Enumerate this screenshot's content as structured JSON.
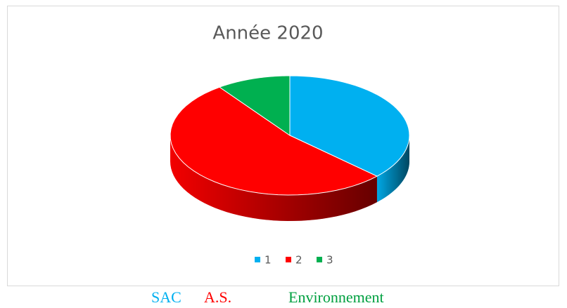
{
  "chart_data": {
    "type": "pie3d",
    "title": "Année 2020",
    "categories": [
      "1",
      "2",
      "3"
    ],
    "values": [
      37,
      53,
      10
    ],
    "colors": [
      "#00b0f0",
      "#ff0000",
      "#00b050"
    ],
    "legend": "bottom"
  },
  "captions": [
    {
      "text": "SAC",
      "color": "#00b0f0"
    },
    {
      "text": "A.S.",
      "color": "#ff0000"
    },
    {
      "text": "Environnement",
      "color": "#00a040"
    }
  ]
}
